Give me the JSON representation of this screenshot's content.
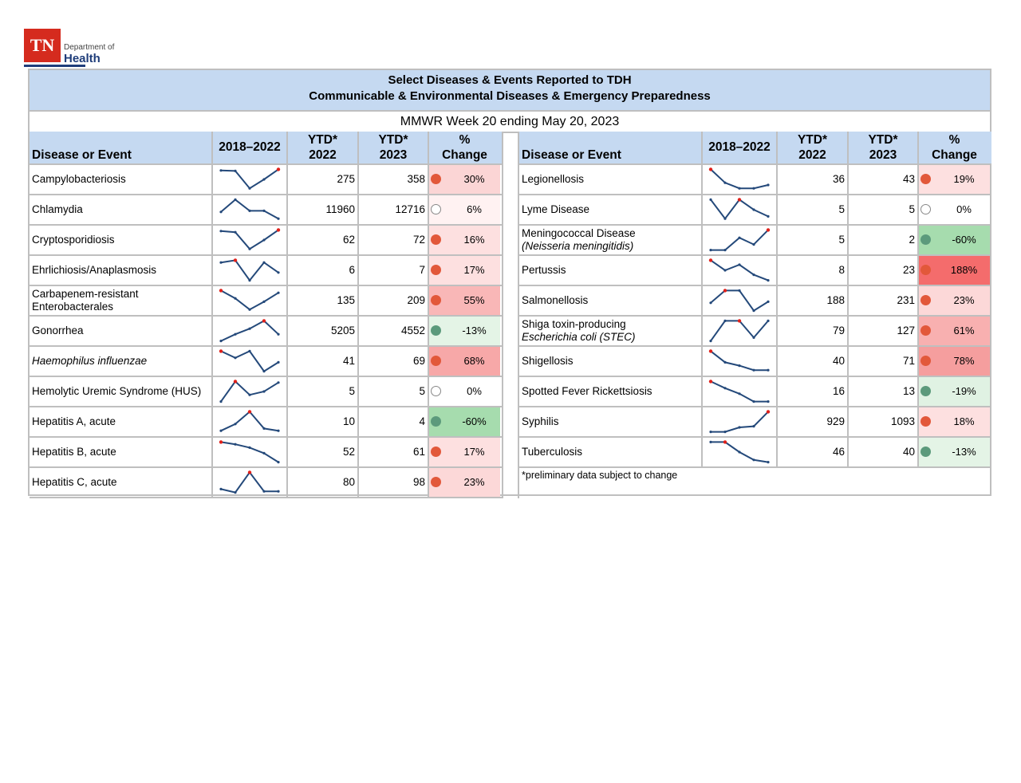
{
  "logo": {
    "mark": "TN",
    "line1": "Department of",
    "line2": "Health"
  },
  "header": {
    "title1": "Select Diseases & Events Reported to TDH",
    "title2": "Communicable & Environmental Diseases & Emergency Preparedness",
    "week": "MMWR Week 20 ending May 20, 2023"
  },
  "columns": {
    "disease": "Disease or Event",
    "trend": "2018–2022",
    "ytd2022_top": "YTD*",
    "ytd2022_bot": "2022",
    "ytd2023_top": "YTD*",
    "ytd2023_bot": "2023",
    "pct_top": "%",
    "pct_bot": "Change"
  },
  "colors": {
    "up": "#e2583a",
    "down": "#5c9a7c",
    "none": "#ffffff",
    "line": "#24497a",
    "marker": "#e0201a",
    "header_bg": "#c5d9f1"
  },
  "left": [
    {
      "name1": "Campylobacteriosis",
      "y2022": "275",
      "y2023": "358",
      "pct": "30%",
      "dir": "up",
      "bg": "#fbd5d5",
      "trend": [
        0.9,
        0.88,
        0.1,
        0.5,
        0.95
      ],
      "hi": 4
    },
    {
      "name1": "Chlamydia",
      "y2022": "11960",
      "y2023": "12716",
      "pct": "6%",
      "dir": "none",
      "bg": "#fff2f2",
      "trend": [
        0.4,
        0.95,
        0.45,
        0.45,
        0.1
      ],
      "hi": -1
    },
    {
      "name1": "Cryptosporidiosis",
      "y2022": "62",
      "y2023": "72",
      "pct": "16%",
      "dir": "up",
      "bg": "#fde0e0",
      "trend": [
        0.9,
        0.85,
        0.1,
        0.5,
        0.95
      ],
      "hi": 4
    },
    {
      "name1": "Ehrlichiosis/Anaplasmosis",
      "y2022": "6",
      "y2023": "7",
      "pct": "17%",
      "dir": "up",
      "bg": "#fde0e0",
      "trend": [
        0.85,
        0.95,
        0.05,
        0.85,
        0.4
      ],
      "hi": 1
    },
    {
      "name1": "Carbapenem-resistant",
      "name2": "Enterobacterales",
      "y2022": "135",
      "y2023": "209",
      "pct": "55%",
      "dir": "up",
      "bg": "#f9b7b7",
      "trend": [
        0.95,
        0.6,
        0.1,
        0.45,
        0.85
      ],
      "hi": 0
    },
    {
      "name1": "Gonorrhea",
      "y2022": "5205",
      "y2023": "4552",
      "pct": "-13%",
      "dir": "down",
      "bg": "#e4f4e6",
      "trend": [
        0.05,
        0.35,
        0.6,
        0.95,
        0.35
      ],
      "hi": 3
    },
    {
      "name1": "Haemophilus influenzae",
      "italic": true,
      "y2022": "41",
      "y2023": "69",
      "pct": "68%",
      "dir": "up",
      "bg": "#f7a8a8",
      "trend": [
        0.95,
        0.65,
        0.95,
        0.05,
        0.45
      ],
      "hi": 0
    },
    {
      "name1": "Hemolytic Uremic Syndrome (HUS)",
      "y2022": "5",
      "y2023": "5",
      "pct": "0%",
      "dir": "none",
      "bg": "#ffffff",
      "trend": [
        0.05,
        0.95,
        0.35,
        0.5,
        0.9
      ],
      "hi": 1
    },
    {
      "name1": "Hepatitis A, acute",
      "y2022": "10",
      "y2023": "4",
      "pct": "-60%",
      "dir": "down",
      "bg": "#a6dcae",
      "trend": [
        0.1,
        0.4,
        0.95,
        0.2,
        0.1
      ],
      "hi": 2
    },
    {
      "name1": "Hepatitis B, acute",
      "y2022": "52",
      "y2023": "61",
      "pct": "17%",
      "dir": "up",
      "bg": "#fde0e0",
      "trend": [
        0.95,
        0.85,
        0.7,
        0.45,
        0.05
      ],
      "hi": 0
    },
    {
      "name1": "Hepatitis C, acute",
      "y2022": "80",
      "y2023": "98",
      "pct": "23%",
      "dir": "up",
      "bg": "#fcd8d8",
      "trend": [
        0.2,
        0.05,
        0.95,
        0.1,
        0.1
      ],
      "hi": 2
    }
  ],
  "right": [
    {
      "name1": "Legionellosis",
      "y2022": "36",
      "y2023": "43",
      "pct": "19%",
      "dir": "up",
      "bg": "#fde0e0",
      "trend": [
        0.95,
        0.35,
        0.1,
        0.1,
        0.25
      ],
      "hi": 0
    },
    {
      "name1": "Lyme Disease",
      "y2022": "5",
      "y2023": "5",
      "pct": "0%",
      "dir": "none",
      "bg": "#ffffff",
      "trend": [
        0.95,
        0.1,
        0.95,
        0.5,
        0.2
      ],
      "hi": 2
    },
    {
      "name1": "Meningococcal Disease",
      "name2": "(Neisseria meningitidis)",
      "name2italic": true,
      "y2022": "5",
      "y2023": "2",
      "pct": "-60%",
      "dir": "down",
      "bg": "#a6dcae",
      "trend": [
        0.05,
        0.05,
        0.6,
        0.3,
        0.95
      ],
      "hi": 4
    },
    {
      "name1": "Pertussis",
      "y2022": "8",
      "y2023": "23",
      "pct": "188%",
      "dir": "up",
      "bg": "#f46c6c",
      "trend": [
        0.95,
        0.5,
        0.75,
        0.3,
        0.05
      ],
      "hi": 0
    },
    {
      "name1": "Salmonellosis",
      "y2022": "188",
      "y2023": "231",
      "pct": "23%",
      "dir": "up",
      "bg": "#fcd8d8",
      "trend": [
        0.4,
        0.95,
        0.95,
        0.05,
        0.45
      ],
      "hi": 1
    },
    {
      "name1": "Shiga toxin-producing",
      "name2": "Escherichia coli (STEC)",
      "name2italic": true,
      "y2022": "79",
      "y2023": "127",
      "pct": "61%",
      "dir": "up",
      "bg": "#f8b0b0",
      "trend": [
        0.05,
        0.95,
        0.95,
        0.2,
        0.95
      ],
      "hi": 2
    },
    {
      "name1": "Shigellosis",
      "y2022": "40",
      "y2023": "71",
      "pct": "78%",
      "dir": "up",
      "bg": "#f59e9e",
      "trend": [
        0.95,
        0.45,
        0.3,
        0.1,
        0.1
      ],
      "hi": 0
    },
    {
      "name1": "Spotted Fever Rickettsiosis",
      "y2022": "16",
      "y2023": "13",
      "pct": "-19%",
      "dir": "down",
      "bg": "#e0f2e3",
      "trend": [
        0.95,
        0.65,
        0.4,
        0.05,
        0.05
      ],
      "hi": 0
    },
    {
      "name1": "Syphilis",
      "y2022": "929",
      "y2023": "1093",
      "pct": "18%",
      "dir": "up",
      "bg": "#fde0e0",
      "trend": [
        0.05,
        0.05,
        0.25,
        0.3,
        0.95
      ],
      "hi": 4
    },
    {
      "name1": "Tuberculosis",
      "y2022": "46",
      "y2023": "40",
      "pct": "-13%",
      "dir": "down",
      "bg": "#e4f4e6",
      "trend": [
        0.95,
        0.95,
        0.5,
        0.15,
        0.05
      ],
      "hi": 1
    }
  ],
  "footnote": "*preliminary data subject to change"
}
